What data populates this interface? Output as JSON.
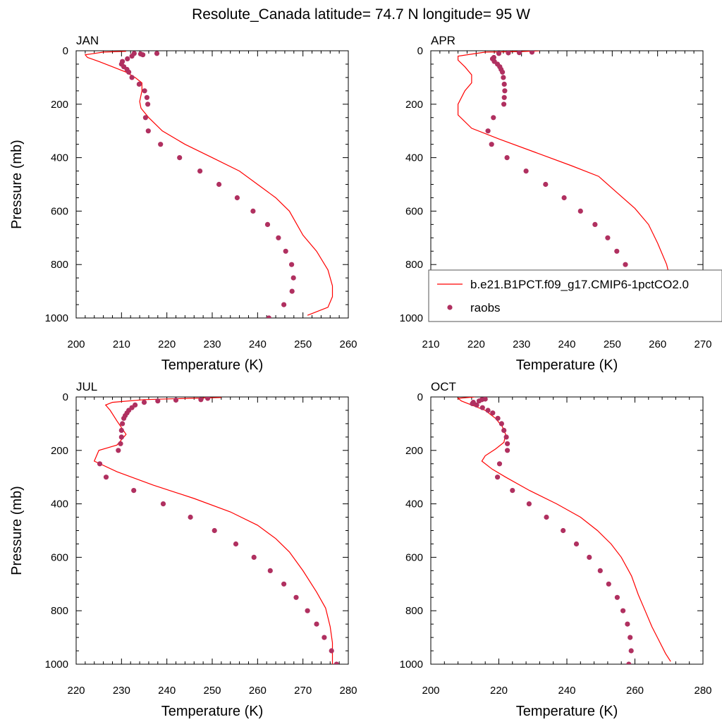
{
  "title": "Resolute_Canada  latitude= 74.7 N longitude= 95 W",
  "colors": {
    "model_line": "#ff0000",
    "obs_marker": "#b03060",
    "axis": "#000000"
  },
  "legend": {
    "model_label": "b.e21.B1PCT.f09_g17.CMIP6-1pctCO2.0",
    "obs_label": "raobs",
    "placement": "inside APR panel, lower right"
  },
  "chart_data": [
    {
      "type": "scatter",
      "panel": "JAN",
      "xlabel": "Temperature (K)",
      "ylabel": "Pressure (mb)",
      "xlim": [
        200,
        260
      ],
      "ylim": [
        0,
        1000
      ],
      "y_inverted": true,
      "xticks": [
        200,
        210,
        220,
        230,
        240,
        250,
        260
      ],
      "yticks": [
        0,
        200,
        400,
        600,
        800,
        1000
      ],
      "show_ylabel": true,
      "show_legend": false,
      "series": [
        {
          "name": "b.e21.B1PCT.f09_g17.CMIP6-1pctCO2.0",
          "kind": "line",
          "points": [
            [
              211,
              2
            ],
            [
              206,
              5
            ],
            [
              202,
              15
            ],
            [
              202.5,
              25
            ],
            [
              205,
              40
            ],
            [
              208,
              60
            ],
            [
              211,
              80
            ],
            [
              213,
              100
            ],
            [
              214.5,
              120
            ],
            [
              214.5,
              150
            ],
            [
              214,
              190
            ],
            [
              214.3,
              215
            ],
            [
              216,
              250
            ],
            [
              219,
              300
            ],
            [
              224,
              350
            ],
            [
              230,
              400
            ],
            [
              236,
              450
            ],
            [
              240,
              500
            ],
            [
              244,
              550
            ],
            [
              247,
              600
            ],
            [
              250,
              690
            ],
            [
              253,
              750
            ],
            [
              255.5,
              820
            ],
            [
              256.5,
              880
            ],
            [
              256.5,
              920
            ],
            [
              255.5,
              960
            ],
            [
              251,
              990
            ]
          ]
        },
        {
          "name": "raobs",
          "kind": "scatter",
          "points": [
            [
              217.8,
              10
            ],
            [
              214.7,
              15
            ],
            [
              214.2,
              12
            ],
            [
              212.8,
              10
            ],
            [
              212.3,
              20
            ],
            [
              211.3,
              30
            ],
            [
              210.2,
              40
            ],
            [
              210,
              50
            ],
            [
              210.5,
              60
            ],
            [
              211.2,
              70
            ],
            [
              211.6,
              80
            ],
            [
              212.3,
              100
            ],
            [
              213.9,
              125
            ],
            [
              215.1,
              150
            ],
            [
              215.6,
              175
            ],
            [
              215.8,
              200
            ],
            [
              215.3,
              250
            ],
            [
              215.9,
              300
            ],
            [
              218.6,
              350
            ],
            [
              222.8,
              400
            ],
            [
              227.3,
              450
            ],
            [
              231.5,
              500
            ],
            [
              235.5,
              550
            ],
            [
              239,
              600
            ],
            [
              242.2,
              650
            ],
            [
              244.6,
              700
            ],
            [
              246.2,
              750
            ],
            [
              247.5,
              800
            ],
            [
              247.9,
              850
            ],
            [
              247.6,
              900
            ],
            [
              245.8,
              950
            ],
            [
              242.5,
              1000
            ]
          ]
        }
      ]
    },
    {
      "type": "scatter",
      "panel": "APR",
      "xlabel": "Temperature (K)",
      "ylabel": "",
      "xlim": [
        210,
        270
      ],
      "ylim": [
        0,
        1000
      ],
      "y_inverted": true,
      "xticks": [
        210,
        220,
        230,
        240,
        250,
        260,
        270
      ],
      "yticks": [
        0,
        200,
        400,
        600,
        800,
        1000
      ],
      "show_ylabel": false,
      "show_legend": true,
      "series": [
        {
          "name": "b.e21.B1PCT.f09_g17.CMIP6-1pctCO2.0",
          "kind": "line",
          "points": [
            [
              234,
              0
            ],
            [
              230,
              3
            ],
            [
              222,
              5
            ],
            [
              216,
              20
            ],
            [
              216,
              35
            ],
            [
              217.5,
              60
            ],
            [
              219,
              90
            ],
            [
              219,
              120
            ],
            [
              217.5,
              150
            ],
            [
              216,
              200
            ],
            [
              216,
              240
            ],
            [
              219,
              290
            ],
            [
              225,
              330
            ],
            [
              233,
              380
            ],
            [
              241,
              430
            ],
            [
              247,
              470
            ],
            [
              251,
              530
            ],
            [
              255,
              590
            ],
            [
              258,
              650
            ],
            [
              260,
              720
            ],
            [
              262,
              800
            ],
            [
              263,
              870
            ],
            [
              263,
              920
            ],
            [
              262,
              960
            ],
            [
              257.5,
              1000
            ]
          ]
        },
        {
          "name": "raobs",
          "kind": "scatter",
          "points": [
            [
              232.3,
              5
            ],
            [
              229.5,
              7
            ],
            [
              227.1,
              8
            ],
            [
              225,
              10
            ],
            [
              223.9,
              25
            ],
            [
              223.6,
              30
            ],
            [
              224,
              40
            ],
            [
              224.7,
              50
            ],
            [
              225.2,
              60
            ],
            [
              225.5,
              70
            ],
            [
              225.8,
              80
            ],
            [
              226,
              100
            ],
            [
              226.2,
              125
            ],
            [
              226.3,
              150
            ],
            [
              226.2,
              175
            ],
            [
              226.1,
              200
            ],
            [
              223.8,
              250
            ],
            [
              222.6,
              300
            ],
            [
              223.4,
              350
            ],
            [
              226.8,
              400
            ],
            [
              231,
              450
            ],
            [
              235.3,
              500
            ],
            [
              239.4,
              550
            ],
            [
              243,
              600
            ],
            [
              246.2,
              650
            ],
            [
              249,
              700
            ],
            [
              251,
              750
            ],
            [
              252.9,
              800
            ],
            [
              253.9,
              850
            ],
            [
              254.2,
              900
            ],
            [
              253.2,
              950
            ],
            [
              251,
              1000
            ]
          ]
        }
      ]
    },
    {
      "type": "scatter",
      "panel": "JUL",
      "xlabel": "Temperature (K)",
      "ylabel": "Pressure (mb)",
      "xlim": [
        220,
        280
      ],
      "ylim": [
        0,
        1000
      ],
      "y_inverted": true,
      "xticks": [
        220,
        230,
        240,
        250,
        260,
        270,
        280
      ],
      "yticks": [
        0,
        200,
        400,
        600,
        800,
        1000
      ],
      "show_ylabel": true,
      "show_legend": false,
      "series": [
        {
          "name": "b.e21.B1PCT.f09_g17.CMIP6-1pctCO2.0",
          "kind": "line",
          "points": [
            [
              252,
              2
            ],
            [
              245,
              5
            ],
            [
              235,
              10
            ],
            [
              228,
              20
            ],
            [
              226.5,
              30
            ],
            [
              227.5,
              50
            ],
            [
              229,
              90
            ],
            [
              231,
              140
            ],
            [
              229,
              180
            ],
            [
              225,
              200
            ],
            [
              224,
              240
            ],
            [
              229,
              280
            ],
            [
              237,
              330
            ],
            [
              246,
              380
            ],
            [
              254,
              430
            ],
            [
              260,
              480
            ],
            [
              264,
              530
            ],
            [
              267,
              580
            ],
            [
              270,
              650
            ],
            [
              273,
              730
            ],
            [
              275,
              790
            ],
            [
              276,
              860
            ],
            [
              276.5,
              920
            ],
            [
              276.5,
              960
            ],
            [
              276.5,
              1000
            ]
          ]
        },
        {
          "name": "raobs",
          "kind": "scatter",
          "points": [
            [
              249,
              5
            ],
            [
              247.5,
              10
            ],
            [
              242,
              12
            ],
            [
              238,
              15
            ],
            [
              235,
              20
            ],
            [
              233,
              30
            ],
            [
              232.3,
              40
            ],
            [
              231.6,
              50
            ],
            [
              231.2,
              60
            ],
            [
              230.8,
              70
            ],
            [
              230.5,
              80
            ],
            [
              230.2,
              100
            ],
            [
              230,
              125
            ],
            [
              230,
              150
            ],
            [
              229.8,
              175
            ],
            [
              229.3,
              200
            ],
            [
              225.2,
              250
            ],
            [
              226.6,
              300
            ],
            [
              232.7,
              350
            ],
            [
              239.2,
              400
            ],
            [
              245.2,
              450
            ],
            [
              250.5,
              500
            ],
            [
              255.2,
              550
            ],
            [
              259.2,
              600
            ],
            [
              262.8,
              650
            ],
            [
              265.8,
              700
            ],
            [
              268.5,
              750
            ],
            [
              271,
              800
            ],
            [
              273,
              850
            ],
            [
              274.7,
              900
            ],
            [
              276.3,
              950
            ],
            [
              277.4,
              1000
            ]
          ]
        }
      ]
    },
    {
      "type": "scatter",
      "panel": "OCT",
      "xlabel": "Temperature (K)",
      "ylabel": "",
      "xlim": [
        200,
        280
      ],
      "ylim": [
        0,
        1000
      ],
      "y_inverted": true,
      "xticks": [
        200,
        220,
        240,
        260,
        280
      ],
      "yticks": [
        0,
        200,
        400,
        600,
        800,
        1000
      ],
      "show_ylabel": false,
      "show_legend": false,
      "series": [
        {
          "name": "b.e21.B1PCT.f09_g17.CMIP6-1pctCO2.0",
          "kind": "line",
          "points": [
            [
              213,
              0
            ],
            [
              208,
              5
            ],
            [
              209,
              15
            ],
            [
              212,
              30
            ],
            [
              216,
              50
            ],
            [
              219,
              80
            ],
            [
              221,
              110
            ],
            [
              222,
              140
            ],
            [
              221.5,
              170
            ],
            [
              219,
              195
            ],
            [
              216,
              220
            ],
            [
              215,
              240
            ],
            [
              218,
              270
            ],
            [
              222,
              300
            ],
            [
              229,
              350
            ],
            [
              237,
              400
            ],
            [
              244,
              450
            ],
            [
              249,
              500
            ],
            [
              253,
              550
            ],
            [
              256,
              600
            ],
            [
              259,
              670
            ],
            [
              261,
              740
            ],
            [
              263,
              800
            ],
            [
              265,
              860
            ],
            [
              267,
              910
            ],
            [
              269,
              960
            ],
            [
              270.5,
              990
            ]
          ]
        },
        {
          "name": "raobs",
          "kind": "scatter",
          "points": [
            [
              216,
              8
            ],
            [
              215,
              10
            ],
            [
              214.2,
              15
            ],
            [
              212.5,
              20
            ],
            [
              212.2,
              25
            ],
            [
              213.5,
              30
            ],
            [
              215.2,
              40
            ],
            [
              216.8,
              50
            ],
            [
              218.2,
              60
            ],
            [
              219.7,
              80
            ],
            [
              220.8,
              100
            ],
            [
              221.5,
              125
            ],
            [
              222.2,
              150
            ],
            [
              222.5,
              175
            ],
            [
              222.5,
              200
            ],
            [
              220.2,
              250
            ],
            [
              219.6,
              300
            ],
            [
              224,
              350
            ],
            [
              228.9,
              400
            ],
            [
              234,
              450
            ],
            [
              238.9,
              500
            ],
            [
              242.8,
              550
            ],
            [
              246.6,
              600
            ],
            [
              249.8,
              650
            ],
            [
              252.3,
              700
            ],
            [
              254.8,
              750
            ],
            [
              256.5,
              800
            ],
            [
              257.8,
              850
            ],
            [
              258.6,
              900
            ],
            [
              258.9,
              950
            ],
            [
              258.2,
              1000
            ]
          ]
        }
      ]
    }
  ]
}
